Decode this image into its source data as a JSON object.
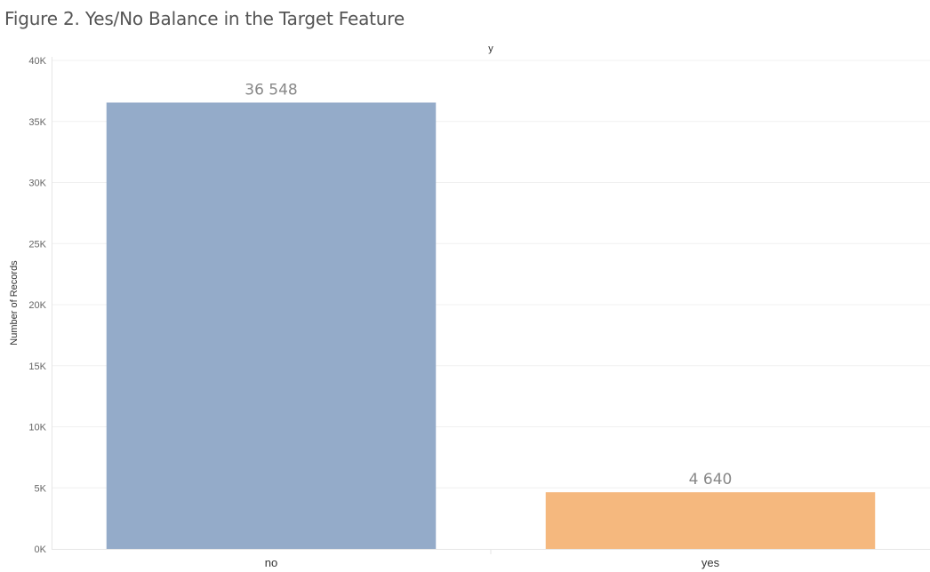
{
  "page": {
    "title": "Figure 2. Yes/No Balance in the Target Feature"
  },
  "chart_data": {
    "type": "bar",
    "title": "Figure 2. Yes/No Balance in the Target Feature",
    "column_header": "y",
    "xlabel": "",
    "ylabel": "Number of Records",
    "categories": [
      "no",
      "yes"
    ],
    "values": [
      36548,
      4640
    ],
    "data_labels": [
      "36 548",
      "4 640"
    ],
    "colors": [
      "#94abc9",
      "#f5b87e"
    ],
    "ylim": [
      0,
      40000
    ],
    "yticks": [
      0,
      5000,
      10000,
      15000,
      20000,
      25000,
      30000,
      35000,
      40000
    ],
    "ytick_labels": [
      "0K",
      "5K",
      "10K",
      "15K",
      "20K",
      "25K",
      "30K",
      "35K",
      "40K"
    ],
    "grid": true,
    "legend": "none"
  }
}
